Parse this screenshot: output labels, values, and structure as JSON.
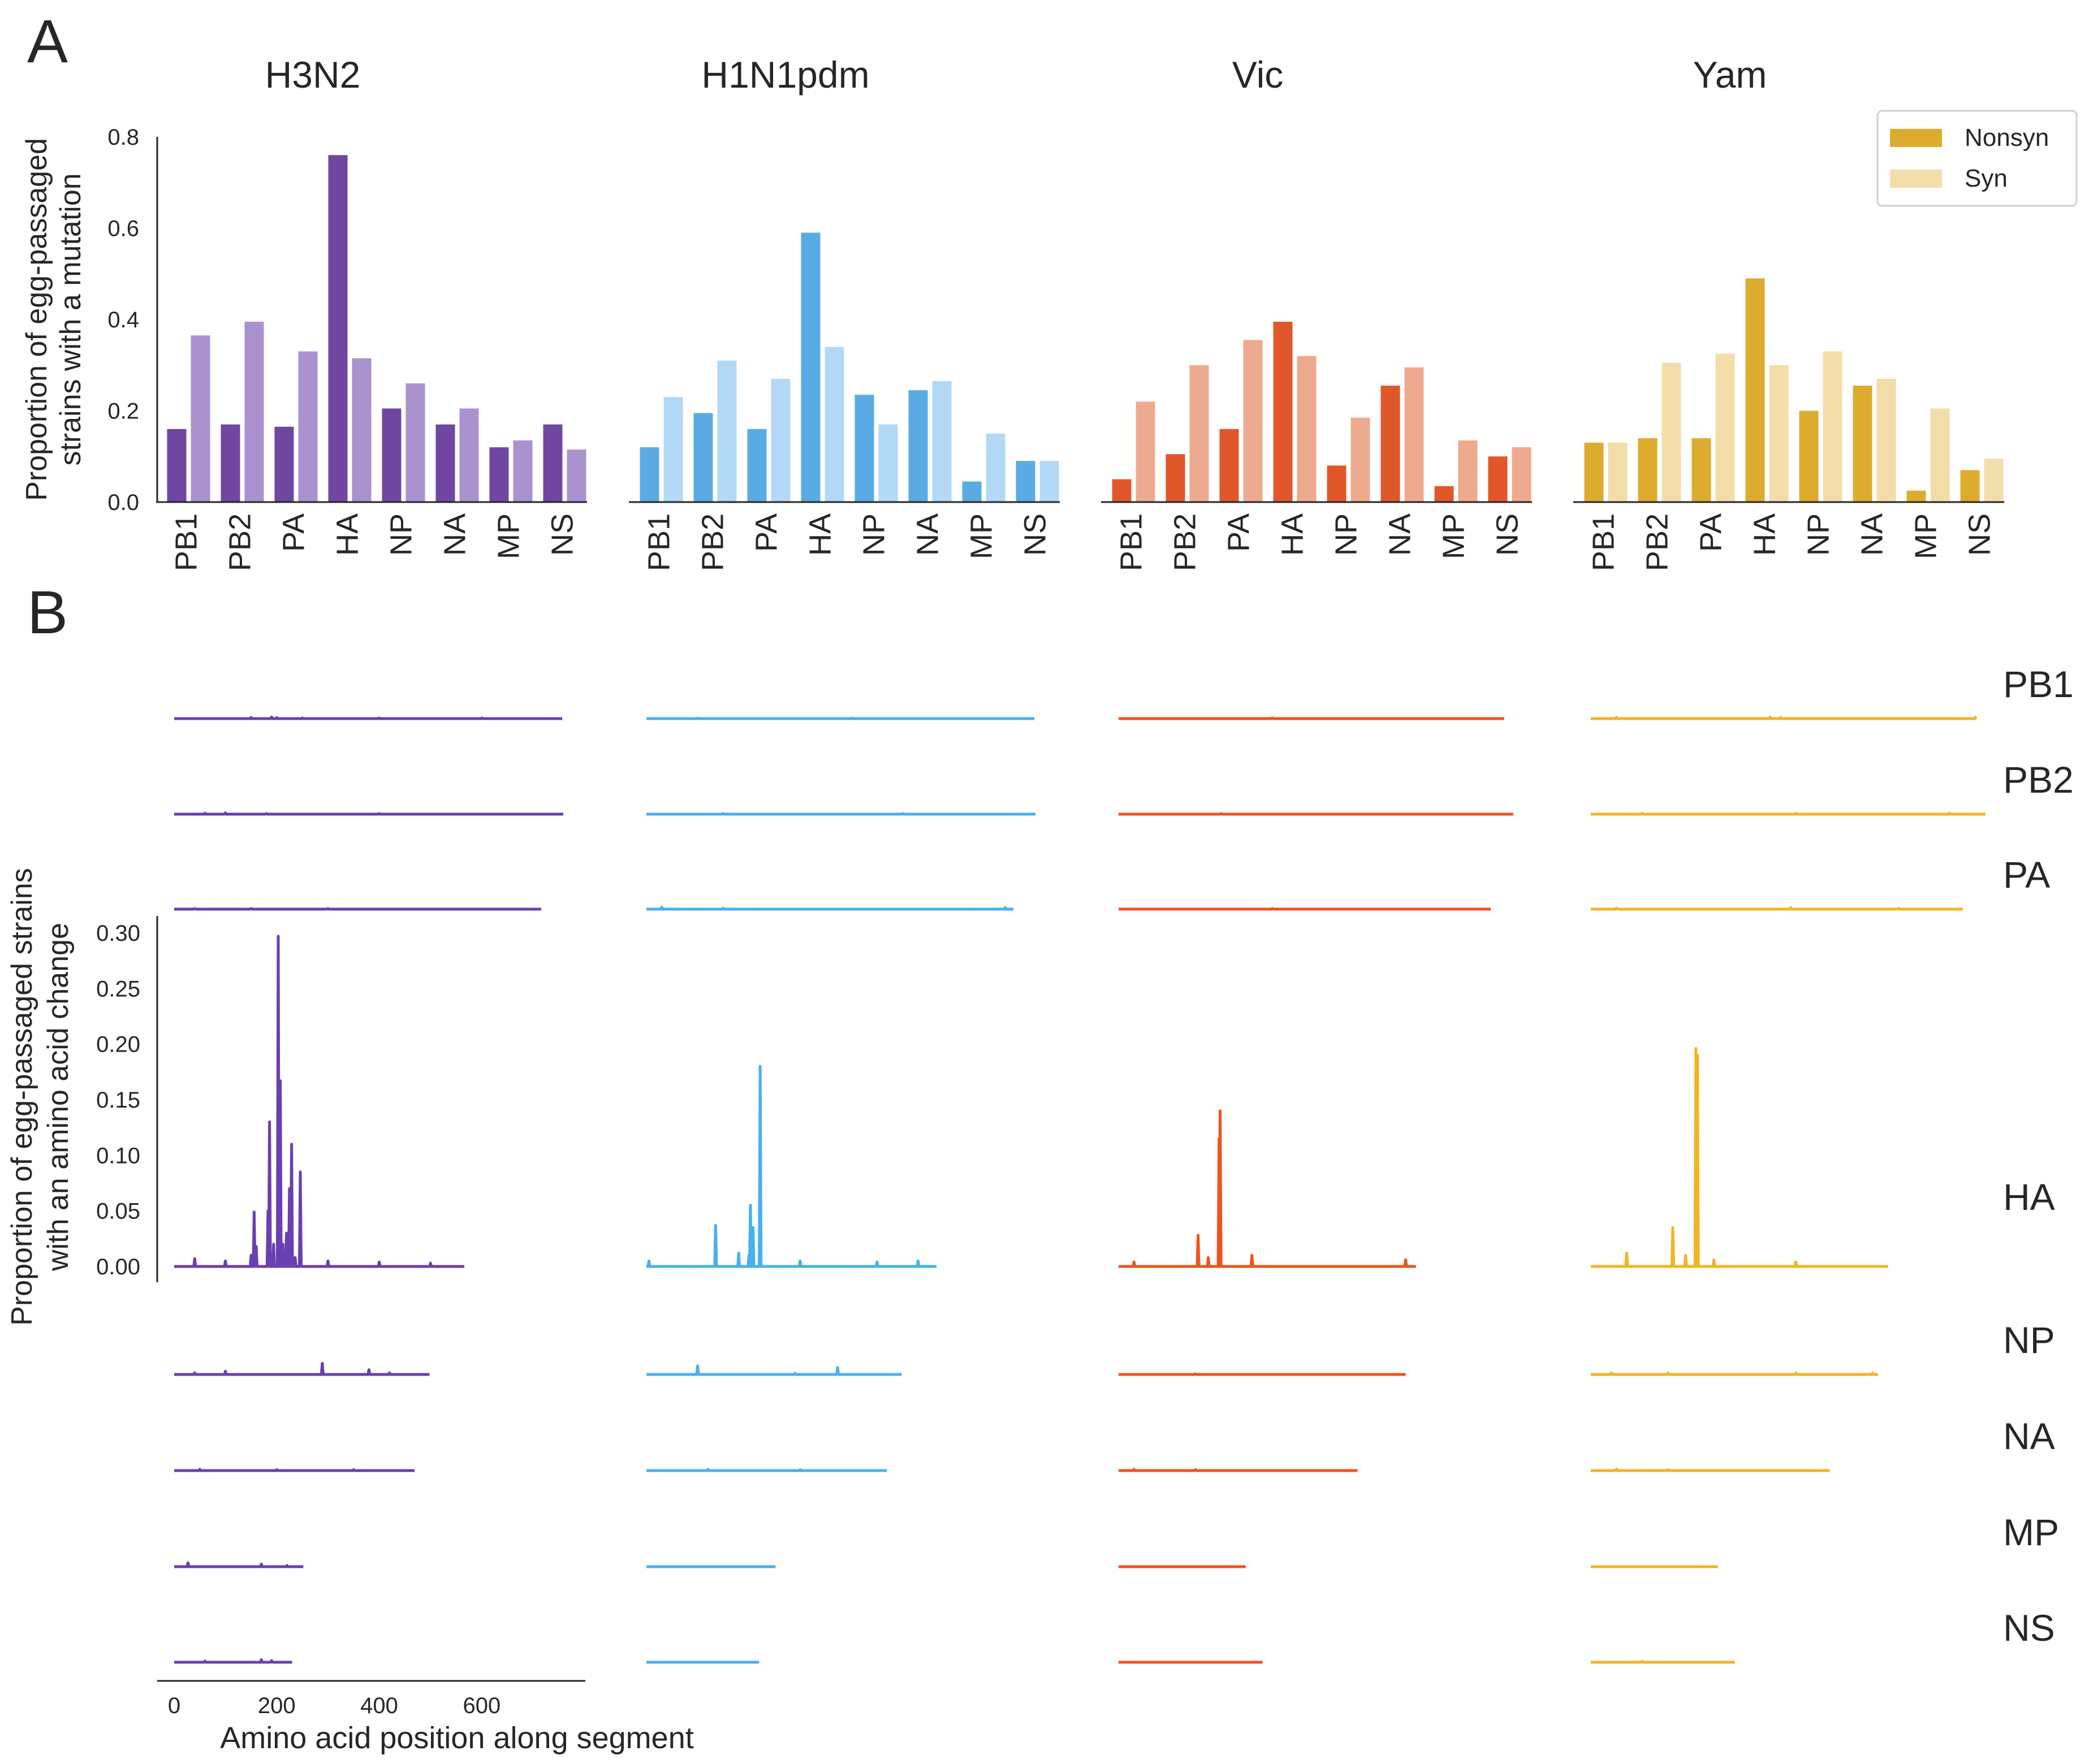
{
  "panel_labels": {
    "a": "A",
    "b": "B"
  },
  "legend": {
    "nonsyn": "Nonsyn",
    "syn": "Syn"
  },
  "colors": {
    "H3N2": {
      "nonsyn": "#6f47a0",
      "syn": "#aa92cf",
      "trace": "#6a3fb0"
    },
    "H1N1pdm": {
      "nonsyn": "#5aabe3",
      "syn": "#b3d8f5",
      "trace": "#47b0f0"
    },
    "Vic": {
      "nonsyn": "#e0582a",
      "syn": "#eeaa8f",
      "trace": "#f1521e"
    },
    "Yam": {
      "nonsyn": "#ddac2f",
      "syn": "#f3deaa",
      "trace": "#f2b422"
    }
  },
  "chart_data": [
    {
      "type": "bar",
      "panel": "A",
      "ylabel": "Proportion of egg-passaged\nstrains with a mutation",
      "ylim": [
        0,
        0.8
      ],
      "yticks": [
        "0.0",
        "0.2",
        "0.4",
        "0.6",
        "0.8"
      ],
      "categories": [
        "PB1",
        "PB2",
        "PA",
        "HA",
        "NP",
        "NA",
        "MP",
        "NS"
      ],
      "legend_position": "top-right",
      "subplots": [
        {
          "title": "H3N2",
          "series": [
            {
              "name": "Nonsyn",
              "values": [
                0.16,
                0.17,
                0.165,
                0.76,
                0.205,
                0.17,
                0.12,
                0.17
              ]
            },
            {
              "name": "Syn",
              "values": [
                0.365,
                0.395,
                0.33,
                0.315,
                0.26,
                0.205,
                0.135,
                0.115
              ]
            }
          ]
        },
        {
          "title": "H1N1pdm",
          "series": [
            {
              "name": "Nonsyn",
              "values": [
                0.12,
                0.195,
                0.16,
                0.59,
                0.235,
                0.245,
                0.045,
                0.09
              ]
            },
            {
              "name": "Syn",
              "values": [
                0.23,
                0.31,
                0.27,
                0.34,
                0.17,
                0.265,
                0.15,
                0.09
              ]
            }
          ]
        },
        {
          "title": "Vic",
          "series": [
            {
              "name": "Nonsyn",
              "values": [
                0.05,
                0.105,
                0.16,
                0.395,
                0.08,
                0.255,
                0.035,
                0.1
              ]
            },
            {
              "name": "Syn",
              "values": [
                0.22,
                0.3,
                0.355,
                0.32,
                0.185,
                0.295,
                0.135,
                0.12
              ]
            }
          ]
        },
        {
          "title": "Yam",
          "series": [
            {
              "name": "Nonsyn",
              "values": [
                0.13,
                0.14,
                0.14,
                0.49,
                0.2,
                0.255,
                0.025,
                0.07
              ]
            },
            {
              "name": "Syn",
              "values": [
                0.13,
                0.305,
                0.325,
                0.3,
                0.33,
                0.27,
                0.205,
                0.095
              ]
            }
          ]
        }
      ]
    },
    {
      "type": "line",
      "panel": "B",
      "ylabel": "Proportion of egg-passaged strains\nwith an amino acid change",
      "xlabel": "Amino acid position along segment",
      "xticks": [
        "0",
        "200",
        "400",
        "600"
      ],
      "ylim": [
        0,
        0.3
      ],
      "yticks": [
        "0.00",
        "0.05",
        "0.10",
        "0.15",
        "0.20",
        "0.25",
        "0.30"
      ],
      "row_labels": [
        "PB1",
        "PB2",
        "PA",
        "HA",
        "NP",
        "NA",
        "MP",
        "NS"
      ],
      "segment_lengths": {
        "H3N2": [
          757,
          759,
          716,
          566,
          498,
          469,
          252,
          230
        ],
        "H1N1pdm": [
          757,
          759,
          716,
          566,
          498,
          469,
          252,
          220
        ],
        "Vic": [
          752,
          770,
          726,
          580,
          560,
          466,
          248,
          281
        ],
        "Yam": [
          752,
          770,
          726,
          580,
          560,
          466,
          248,
          281
        ]
      },
      "peaks": {
        "H3N2": [
          [
            [
              150,
              0.004
            ],
            [
              190,
              0.005
            ],
            [
              200,
              0.003
            ],
            [
              250,
              0.002
            ],
            [
              400,
              0.002
            ],
            [
              600,
              0.002
            ]
          ],
          [
            [
              60,
              0.003
            ],
            [
              100,
              0.004
            ],
            [
              180,
              0.002
            ],
            [
              400,
              0.002
            ]
          ],
          [
            [
              40,
              0.002
            ],
            [
              150,
              0.002
            ],
            [
              300,
              0.002
            ]
          ],
          [
            [
              40,
              0.007
            ],
            [
              100,
              0.005
            ],
            [
              150,
              0.01
            ],
            [
              156,
              0.049
            ],
            [
              160,
              0.018
            ],
            [
              183,
              0.05
            ],
            [
              186,
              0.13
            ],
            [
              194,
              0.02
            ],
            [
              203,
              0.297
            ],
            [
              207,
              0.167
            ],
            [
              212,
              0.02
            ],
            [
              219,
              0.03
            ],
            [
              225,
              0.07
            ],
            [
              229,
              0.11
            ],
            [
              236,
              0.008
            ],
            [
              246,
              0.085
            ],
            [
              300,
              0.005
            ],
            [
              400,
              0.004
            ],
            [
              500,
              0.003
            ]
          ],
          [
            [
              40,
              0.005
            ],
            [
              100,
              0.01
            ],
            [
              289,
              0.035
            ],
            [
              380,
              0.015
            ],
            [
              420,
              0.005
            ]
          ],
          [
            [
              50,
              0.004
            ],
            [
              200,
              0.003
            ],
            [
              350,
              0.003
            ]
          ],
          [
            [
              27,
              0.012
            ],
            [
              170,
              0.008
            ],
            [
              220,
              0.004
            ]
          ],
          [
            [
              60,
              0.004
            ],
            [
              170,
              0.008
            ],
            [
              190,
              0.005
            ]
          ]
        ],
        "H1N1pdm": [
          [
            [
              100,
              0.002
            ],
            [
              400,
              0.002
            ]
          ],
          [
            [
              150,
              0.002
            ],
            [
              500,
              0.002
            ]
          ],
          [
            [
              30,
              0.006
            ],
            [
              150,
              0.003
            ],
            [
              700,
              0.005
            ]
          ],
          [
            [
              5,
              0.005
            ],
            [
              135,
              0.037
            ],
            [
              180,
              0.012
            ],
            [
              200,
              0.01
            ],
            [
              203,
              0.055
            ],
            [
              208,
              0.035
            ],
            [
              222,
              0.18
            ],
            [
              300,
              0.005
            ],
            [
              450,
              0.004
            ],
            [
              530,
              0.005
            ]
          ],
          [
            [
              100,
              0.027
            ],
            [
              290,
              0.004
            ],
            [
              373,
              0.022
            ]
          ],
          [
            [
              120,
              0.004
            ],
            [
              300,
              0.003
            ]
          ],
          [],
          []
        ],
        "Vic": [
          [
            [
              300,
              0.002
            ]
          ],
          [
            [
              200,
              0.002
            ]
          ],
          [
            [
              300,
              0.002
            ]
          ],
          [
            [
              30,
              0.004
            ],
            [
              155,
              0.028
            ],
            [
              175,
              0.008
            ],
            [
              196,
              0.115
            ],
            [
              198,
              0.14
            ],
            [
              260,
              0.01
            ],
            [
              560,
              0.006
            ]
          ],
          [
            [
              150,
              0.002
            ]
          ],
          [
            [
              30,
              0.004
            ],
            [
              150,
              0.003
            ]
          ],
          [],
          []
        ],
        "Yam": [
          [
            [
              50,
              0.004
            ],
            [
              350,
              0.005
            ],
            [
              370,
              0.004
            ],
            [
              750,
              0.004
            ]
          ],
          [
            [
              100,
              0.003
            ],
            [
              400,
              0.003
            ],
            [
              700,
              0.003
            ]
          ],
          [
            [
              50,
              0.003
            ],
            [
              390,
              0.005
            ],
            [
              600,
              0.003
            ]
          ],
          [
            [
              70,
              0.012
            ],
            [
              160,
              0.035
            ],
            [
              185,
              0.01
            ],
            [
              205,
              0.196
            ],
            [
              208,
              0.19
            ],
            [
              240,
              0.006
            ],
            [
              400,
              0.004
            ]
          ],
          [
            [
              40,
              0.005
            ],
            [
              150,
              0.004
            ],
            [
              400,
              0.004
            ],
            [
              550,
              0.004
            ]
          ],
          [
            [
              50,
              0.005
            ],
            [
              150,
              0.003
            ]
          ],
          [],
          [
            [
              100,
              0.003
            ]
          ]
        ]
      }
    }
  ]
}
